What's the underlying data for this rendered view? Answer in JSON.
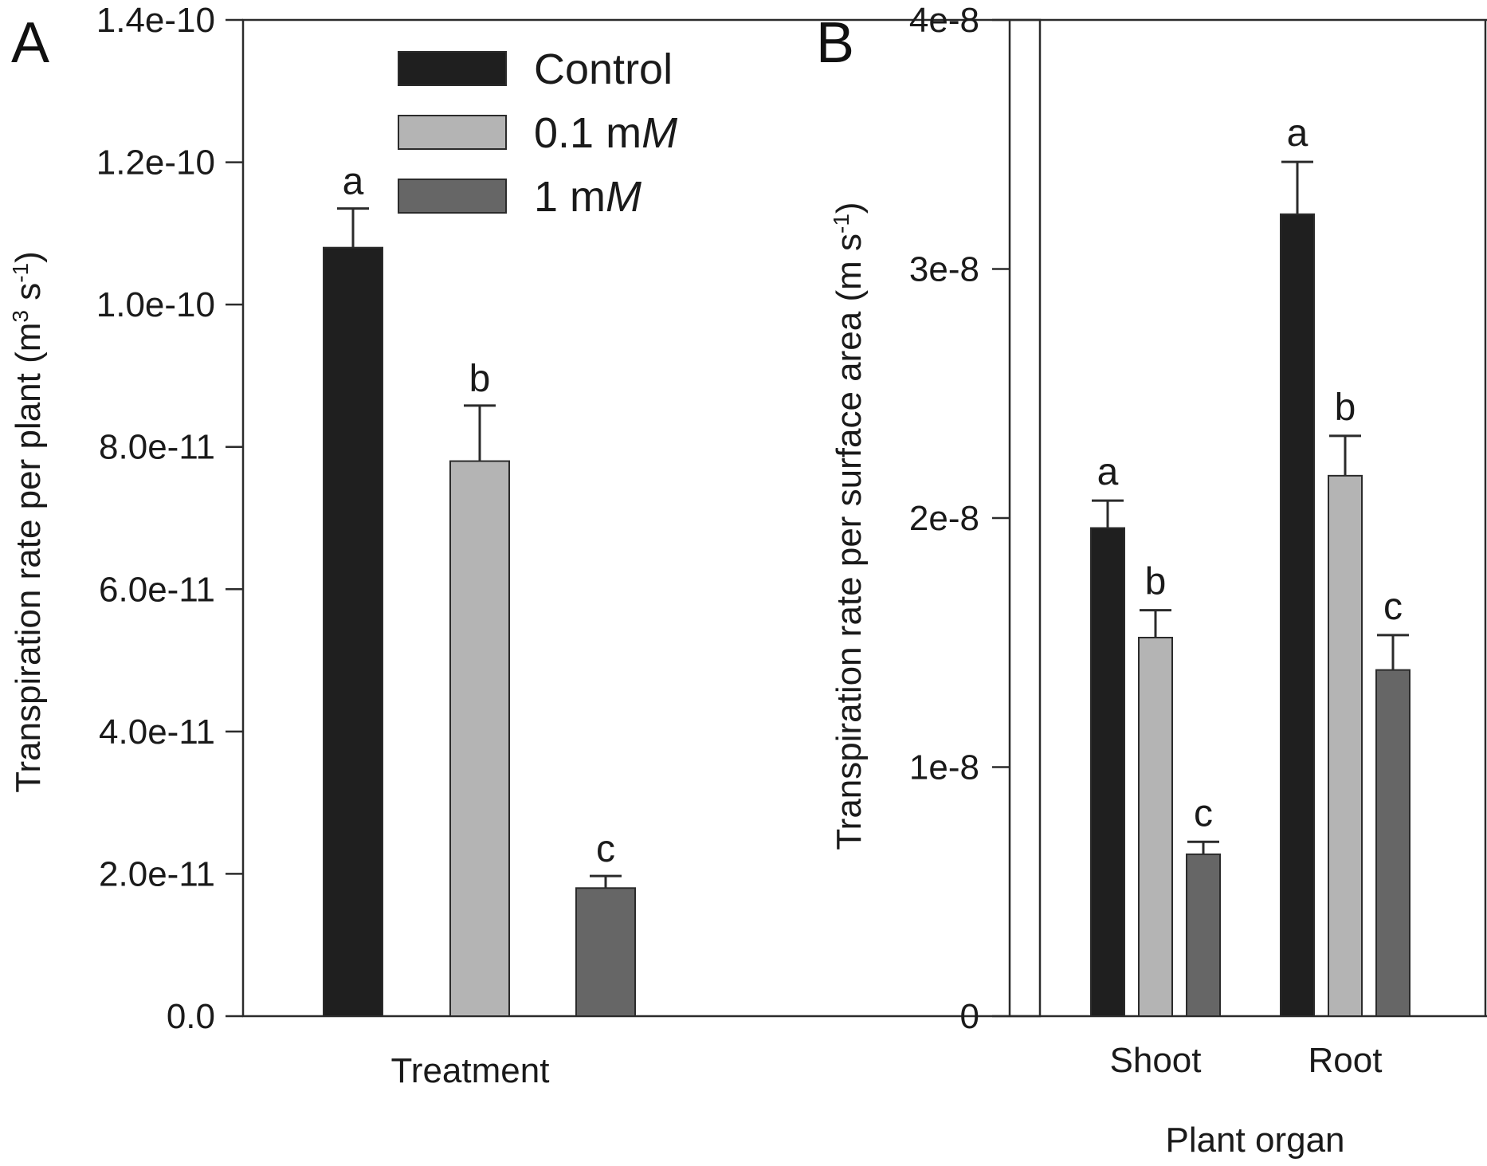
{
  "colors": {
    "control": "#1f1f1f",
    "mid": "#b4b4b4",
    "high": "#666666"
  },
  "chart_data": [
    {
      "panel": "A",
      "type": "bar",
      "title": "",
      "xlabel": "Treatment",
      "ylabel": "Transpiration rate per plant (m³ s⁻¹)",
      "ylabel_main": "Transpiration rate per plant (m",
      "ylabel_sup1": "3",
      "ylabel_mid": " s",
      "ylabel_sup2": "-1",
      "ylabel_end": ")",
      "ylim": [
        0,
        1.4e-10
      ],
      "yticks": [
        0,
        2e-11,
        4e-11,
        6e-11,
        8e-11,
        1e-10,
        1.2e-10,
        1.4e-10
      ],
      "ytick_labels": [
        "0.0",
        "2.0e-11",
        "4.0e-11",
        "6.0e-11",
        "8.0e-11",
        "1.0e-10",
        "1.2e-10",
        "1.4e-10"
      ],
      "grid": false,
      "legend": "top-right",
      "series": [
        {
          "name": "Control",
          "name_main": "Control",
          "name_unit": "",
          "value": 1.08e-10,
          "error": 5.5e-12,
          "significance": "a",
          "color_key": "control"
        },
        {
          "name": "0.1 mM",
          "name_main": "0.1 m",
          "name_unit": "M",
          "value": 7.8e-11,
          "error": 7.8e-12,
          "significance": "b",
          "color_key": "mid"
        },
        {
          "name": "1 mM",
          "name_main": "1 m",
          "name_unit": "M",
          "value": 1.8e-11,
          "error": 1.7e-12,
          "significance": "c",
          "color_key": "high"
        }
      ]
    },
    {
      "panel": "B",
      "type": "bar",
      "title": "",
      "xlabel": "Plant organ",
      "ylabel": "Transpiration rate per surface area (m s⁻¹)",
      "ylabel_main": "Transpiration rate per surface area (m s",
      "ylabel_sup": "-1",
      "ylabel_end": ")",
      "ylim": [
        0,
        4e-08
      ],
      "yticks": [
        0,
        1e-08,
        2e-08,
        3e-08,
        4e-08
      ],
      "ytick_labels": [
        "0",
        "1e-8",
        "2e-8",
        "3e-8",
        "4e-8"
      ],
      "grid": false,
      "categories": [
        "Shoot",
        "Root"
      ],
      "series": [
        {
          "name": "Control",
          "values": [
            1.96e-08,
            3.22e-08
          ],
          "errors": [
            1.1e-09,
            2.1e-09
          ],
          "significance": [
            "a",
            "a"
          ],
          "color_key": "control"
        },
        {
          "name": "0.1 mM",
          "values": [
            1.52e-08,
            2.17e-08
          ],
          "errors": [
            1.1e-09,
            1.6e-09
          ],
          "significance": [
            "b",
            "b"
          ],
          "color_key": "mid"
        },
        {
          "name": "1 mM",
          "values": [
            6.5e-09,
            1.39e-08
          ],
          "errors": [
            5e-10,
            1.4e-09
          ],
          "significance": [
            "c",
            "c"
          ],
          "color_key": "high"
        }
      ]
    }
  ]
}
